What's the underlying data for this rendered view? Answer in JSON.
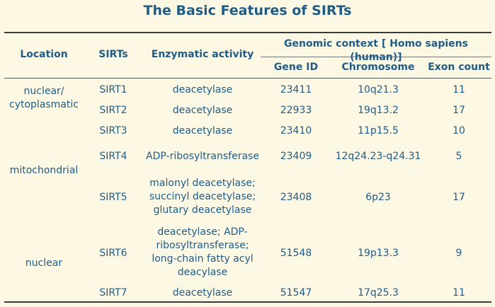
{
  "title": "The Basic Features of SIRTs",
  "headers": {
    "location": "Location",
    "sirts": "SIRTs",
    "activity": "Enzymatic activity",
    "genomic": "Genomic context [ Homo sapiens (human)]",
    "gene_id": "Gene ID",
    "chromosome": "Chromosome",
    "exon": "Exon count"
  },
  "locations": [
    {
      "lines": [
        "nuclear/",
        "cytoplasmatic"
      ]
    },
    {
      "lines": [
        "mitochondrial"
      ]
    },
    {
      "lines": [
        "nuclear"
      ]
    }
  ],
  "rows": [
    {
      "sirt": "SIRT1",
      "activity": [
        "deacetylase"
      ],
      "gene_id": "23411",
      "chromosome": "10q21.3",
      "exon": "11"
    },
    {
      "sirt": "SIRT2",
      "activity": [
        "deacetylase"
      ],
      "gene_id": "22933",
      "chromosome": "19q13.2",
      "exon": "17"
    },
    {
      "sirt": "SIRT3",
      "activity": [
        "deacetylase"
      ],
      "gene_id": "23410",
      "chromosome": "11p15.5",
      "exon": "10"
    },
    {
      "sirt": "SIRT4",
      "activity": [
        "ADP-ribosyltransferase"
      ],
      "gene_id": "23409",
      "chromosome": "12q24.23-q24.31",
      "exon": "5"
    },
    {
      "sirt": "SIRT5",
      "activity": [
        "malonyl deacetylase;",
        "succinyl deacetylase;",
        "glutary deacetylase"
      ],
      "gene_id": "23408",
      "chromosome": "6p23",
      "exon": "17"
    },
    {
      "sirt": "SIRT6",
      "activity": [
        "deacetylase; ADP-",
        "ribosyltransferase;",
        "long-chain fatty acyl",
        "deacylase"
      ],
      "gene_id": "51548",
      "chromosome": "19p13.3",
      "exon": "9"
    },
    {
      "sirt": "SIRT7",
      "activity": [
        "deacetylase"
      ],
      "gene_id": "51547",
      "chromosome": "17q25.3",
      "exon": "11"
    }
  ]
}
